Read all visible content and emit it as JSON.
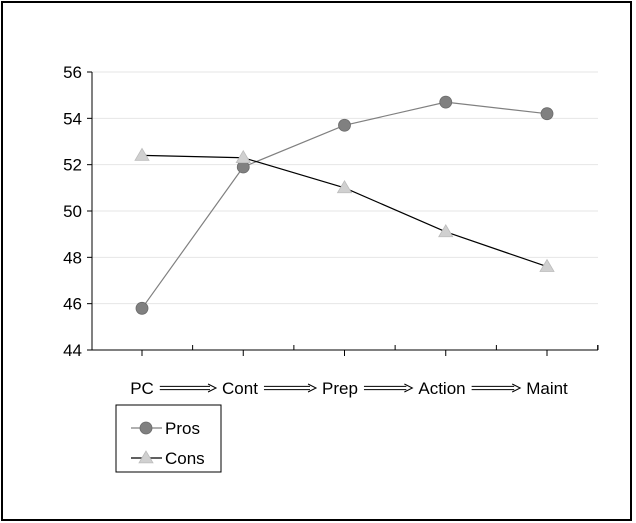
{
  "chart_data": {
    "type": "line",
    "categories": [
      "PC",
      "Cont",
      "Prep",
      "Action",
      "Maint"
    ],
    "series": [
      {
        "name": "Pros",
        "values": [
          45.8,
          51.9,
          53.7,
          54.7,
          54.2
        ],
        "color": "#808080",
        "marker": "circle"
      },
      {
        "name": "Cons",
        "values": [
          52.4,
          52.3,
          51.0,
          49.1,
          47.6
        ],
        "color": "#d0d0d0",
        "line_color": "#000000",
        "marker": "triangle"
      }
    ],
    "ylim": [
      44,
      56
    ],
    "yticks": [
      44,
      46,
      48,
      50,
      52,
      54,
      56
    ],
    "grid": true,
    "legend_position": "bottom-left",
    "category_separator": "arrow"
  }
}
